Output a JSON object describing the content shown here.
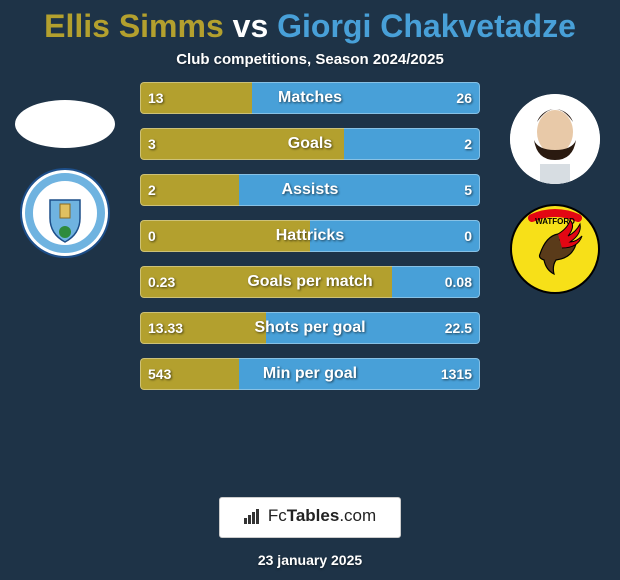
{
  "title": {
    "full": "Ellis Simms vs Giorgi Chakvetadze",
    "left_name": "Ellis Simms",
    "vs": " vs ",
    "right_name": "Giorgi Chakvetadze",
    "left_color": "#b3a02e",
    "right_color": "#48a0d8",
    "font_size": 32
  },
  "subtitle": "Club competitions, Season 2024/2025",
  "background_color": "#1e3347",
  "bars": {
    "left_color": "#b3a02e",
    "right_color": "#48a0d8",
    "height": 32,
    "gap": 14,
    "rows": [
      {
        "label": "Matches",
        "left_text": "13",
        "right_text": "26",
        "left_pct": 33,
        "right_pct": 67
      },
      {
        "label": "Goals",
        "left_text": "3",
        "right_text": "2",
        "left_pct": 60,
        "right_pct": 40
      },
      {
        "label": "Assists",
        "left_text": "2",
        "right_text": "5",
        "left_pct": 29,
        "right_pct": 71
      },
      {
        "label": "Hattricks",
        "left_text": "0",
        "right_text": "0",
        "left_pct": 50,
        "right_pct": 50
      },
      {
        "label": "Goals per match",
        "left_text": "0.23",
        "right_text": "0.08",
        "left_pct": 74,
        "right_pct": 26
      },
      {
        "label": "Shots per goal",
        "left_text": "13.33",
        "right_text": "22.5",
        "left_pct": 37,
        "right_pct": 63
      },
      {
        "label": "Min per goal",
        "left_text": "543",
        "right_text": "1315",
        "left_pct": 29,
        "right_pct": 71
      }
    ]
  },
  "crests": {
    "left": {
      "name": "coventry-crest",
      "bg": "#ffffff",
      "accent1": "#6fb3e0",
      "accent2": "#1d4e89"
    },
    "right": {
      "name": "watford-crest",
      "bg": "#f7e018",
      "accent1": "#e30613",
      "accent2": "#000000"
    }
  },
  "footer": {
    "brand_prefix": "Fc",
    "brand_bold": "Tables",
    "brand_suffix": ".com",
    "date": "23 january 2025"
  }
}
